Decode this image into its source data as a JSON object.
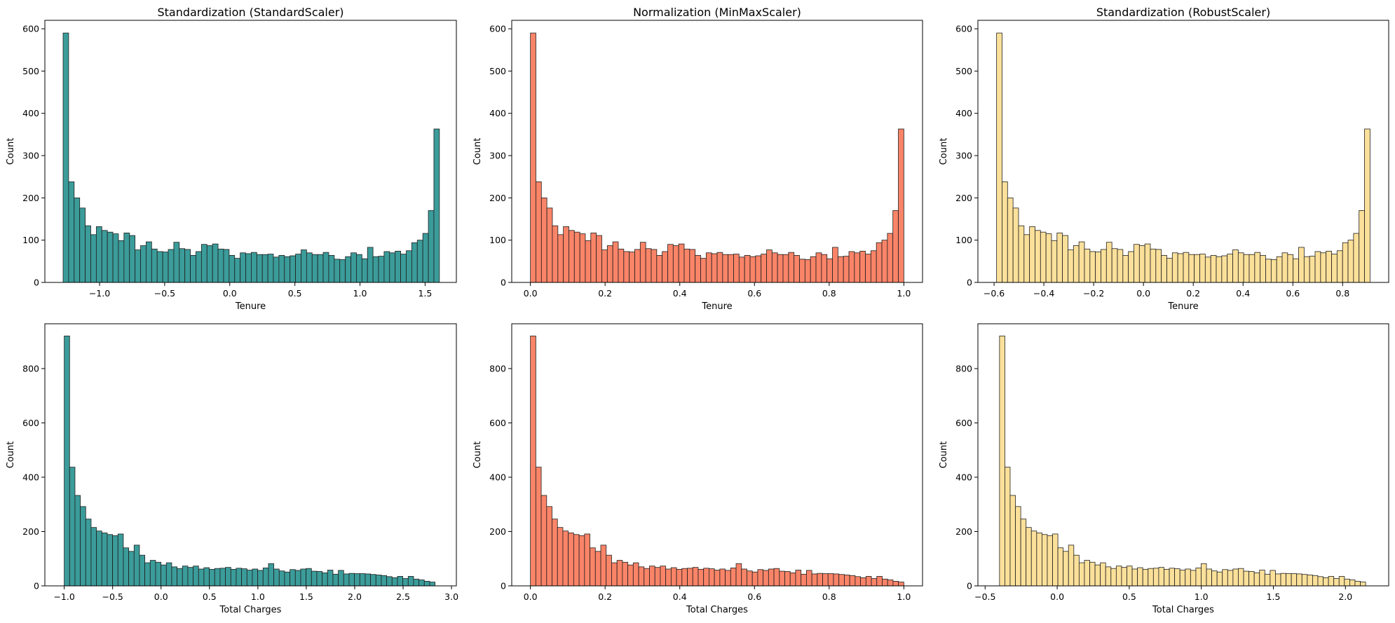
{
  "colors": {
    "standard": "#3b9c9a",
    "minmax": "#fa8468",
    "robust": "#fbe09a",
    "edge": "#1f1f1f"
  },
  "chart_data": [
    {
      "type": "bar",
      "subtype": "histogram",
      "title": "Standardization (StandardScaler)",
      "xlabel": "Tenure",
      "ylabel": "Count",
      "xlim": [
        -1.42,
        1.74
      ],
      "ylim": [
        0,
        620
      ],
      "xticks": [
        -1.0,
        -0.5,
        0.0,
        0.5,
        1.0,
        1.5
      ],
      "xtick_labels": [
        "−1.0",
        "−0.5",
        "0.0",
        "0.5",
        "1.0",
        "1.5"
      ],
      "yticks": [
        0,
        100,
        200,
        300,
        400,
        500,
        600
      ],
      "bin_start": -1.28,
      "bin_end": 1.61,
      "color": "standard",
      "values": [
        590,
        238,
        200,
        176,
        134,
        113,
        132,
        123,
        119,
        115,
        99,
        117,
        111,
        77,
        87,
        96,
        79,
        73,
        72,
        78,
        95,
        80,
        78,
        64,
        73,
        90,
        87,
        91,
        79,
        78,
        64,
        57,
        70,
        68,
        71,
        66,
        66,
        67,
        60,
        64,
        61,
        63,
        67,
        77,
        70,
        66,
        66,
        71,
        64,
        55,
        54,
        61,
        70,
        66,
        56,
        83,
        61,
        62,
        73,
        70,
        74,
        67,
        75,
        94,
        100,
        116,
        170,
        363
      ]
    },
    {
      "type": "bar",
      "subtype": "histogram",
      "title": "Normalization (MinMaxScaler)",
      "xlabel": "Tenure",
      "ylabel": "Count",
      "xlim": [
        -0.05,
        1.05
      ],
      "ylim": [
        0,
        620
      ],
      "xticks": [
        0.0,
        0.2,
        0.4,
        0.6,
        0.8,
        1.0
      ],
      "xtick_labels": [
        "0.0",
        "0.2",
        "0.4",
        "0.6",
        "0.8",
        "1.0"
      ],
      "yticks": [
        0,
        100,
        200,
        300,
        400,
        500,
        600
      ],
      "bin_start": 0.0,
      "bin_end": 1.0,
      "color": "minmax",
      "values": [
        590,
        238,
        200,
        176,
        134,
        113,
        132,
        123,
        119,
        115,
        99,
        117,
        111,
        77,
        87,
        96,
        79,
        73,
        72,
        78,
        95,
        80,
        78,
        64,
        73,
        90,
        87,
        91,
        79,
        78,
        64,
        57,
        70,
        68,
        71,
        66,
        66,
        67,
        60,
        64,
        61,
        63,
        67,
        77,
        70,
        66,
        66,
        71,
        64,
        55,
        54,
        61,
        70,
        66,
        56,
        83,
        61,
        62,
        73,
        70,
        74,
        67,
        75,
        94,
        100,
        116,
        170,
        363
      ]
    },
    {
      "type": "bar",
      "subtype": "histogram",
      "title": "Standardization (RobustScaler)",
      "xlabel": "Tenure",
      "ylabel": "Count",
      "xlim": [
        -0.665,
        0.985
      ],
      "ylim": [
        0,
        620
      ],
      "xticks": [
        -0.6,
        -0.4,
        -0.2,
        0.0,
        0.2,
        0.4,
        0.6,
        0.8
      ],
      "xtick_labels": [
        "−0.6",
        "−0.4",
        "−0.2",
        "0.0",
        "0.2",
        "0.4",
        "0.6",
        "0.8"
      ],
      "yticks": [
        0,
        100,
        200,
        300,
        400,
        500,
        600
      ],
      "bin_start": -0.59,
      "bin_end": 0.91,
      "color": "robust",
      "values": [
        590,
        238,
        200,
        176,
        134,
        113,
        132,
        123,
        119,
        115,
        99,
        117,
        111,
        77,
        87,
        96,
        79,
        73,
        72,
        78,
        95,
        80,
        78,
        64,
        73,
        90,
        87,
        91,
        79,
        78,
        64,
        57,
        70,
        68,
        71,
        66,
        66,
        67,
        60,
        64,
        61,
        63,
        67,
        77,
        70,
        66,
        66,
        71,
        64,
        55,
        54,
        61,
        70,
        66,
        56,
        83,
        61,
        62,
        73,
        70,
        74,
        67,
        75,
        94,
        100,
        116,
        170,
        363
      ]
    },
    {
      "type": "bar",
      "subtype": "histogram",
      "title": "",
      "xlabel": "Total Charges",
      "ylabel": "Count",
      "xlim": [
        -1.2,
        3.05
      ],
      "ylim": [
        0,
        965
      ],
      "xticks": [
        -1.0,
        -0.5,
        0.0,
        0.5,
        1.0,
        1.5,
        2.0,
        2.5,
        3.0
      ],
      "xtick_labels": [
        "−1.0",
        "−0.5",
        "0.0",
        "0.5",
        "1.0",
        "1.5",
        "2.0",
        "2.5",
        "3.0"
      ],
      "yticks": [
        0,
        200,
        400,
        600,
        800
      ],
      "bin_start": -1.0,
      "bin_end": 2.83,
      "color": "standard",
      "values": [
        920,
        437,
        333,
        292,
        246,
        215,
        202,
        195,
        189,
        185,
        191,
        140,
        127,
        150,
        113,
        85,
        94,
        87,
        77,
        85,
        70,
        64,
        73,
        68,
        73,
        62,
        67,
        61,
        64,
        65,
        68,
        61,
        65,
        63,
        58,
        62,
        57,
        66,
        82,
        62,
        55,
        51,
        60,
        57,
        62,
        64,
        54,
        53,
        48,
        58,
        43,
        57,
        44,
        46,
        45,
        45,
        44,
        42,
        40,
        38,
        34,
        30,
        35,
        27,
        35,
        25,
        22,
        17,
        14
      ]
    },
    {
      "type": "bar",
      "subtype": "histogram",
      "title": "",
      "xlabel": "Total Charges",
      "ylabel": "Count",
      "xlim": [
        -0.05,
        1.05
      ],
      "ylim": [
        0,
        965
      ],
      "xticks": [
        0.0,
        0.2,
        0.4,
        0.6,
        0.8,
        1.0
      ],
      "xtick_labels": [
        "0.0",
        "0.2",
        "0.4",
        "0.6",
        "0.8",
        "1.0"
      ],
      "yticks": [
        0,
        200,
        400,
        600,
        800
      ],
      "bin_start": 0.0,
      "bin_end": 1.0,
      "color": "minmax",
      "values": [
        920,
        437,
        333,
        292,
        246,
        215,
        202,
        195,
        189,
        185,
        191,
        140,
        127,
        150,
        113,
        85,
        94,
        87,
        77,
        85,
        70,
        64,
        73,
        68,
        73,
        62,
        67,
        61,
        64,
        65,
        68,
        61,
        65,
        63,
        58,
        62,
        57,
        66,
        82,
        62,
        55,
        51,
        60,
        57,
        62,
        64,
        54,
        53,
        48,
        58,
        43,
        57,
        44,
        46,
        45,
        45,
        44,
        42,
        40,
        38,
        34,
        30,
        35,
        27,
        35,
        25,
        22,
        17,
        14
      ]
    },
    {
      "type": "bar",
      "subtype": "histogram",
      "title": "",
      "xlabel": "Total Charges",
      "ylabel": "Count",
      "xlim": [
        -0.55,
        2.3
      ],
      "ylim": [
        0,
        965
      ],
      "xticks": [
        -0.5,
        0.0,
        0.5,
        1.0,
        1.5,
        2.0
      ],
      "xtick_labels": [
        "−0.5",
        "0.0",
        "0.5",
        "1.0",
        "1.5",
        "2.0"
      ],
      "yticks": [
        0,
        200,
        400,
        600,
        800
      ],
      "bin_start": -0.4,
      "bin_end": 2.14,
      "color": "robust",
      "values": [
        920,
        437,
        333,
        292,
        246,
        215,
        202,
        195,
        189,
        185,
        191,
        140,
        127,
        150,
        113,
        85,
        94,
        87,
        77,
        85,
        70,
        64,
        73,
        68,
        73,
        62,
        67,
        61,
        64,
        65,
        68,
        61,
        65,
        63,
        58,
        62,
        57,
        66,
        82,
        62,
        55,
        51,
        60,
        57,
        62,
        64,
        54,
        53,
        48,
        58,
        43,
        57,
        44,
        46,
        45,
        45,
        44,
        42,
        40,
        38,
        34,
        30,
        35,
        27,
        35,
        25,
        22,
        17,
        14
      ]
    }
  ]
}
